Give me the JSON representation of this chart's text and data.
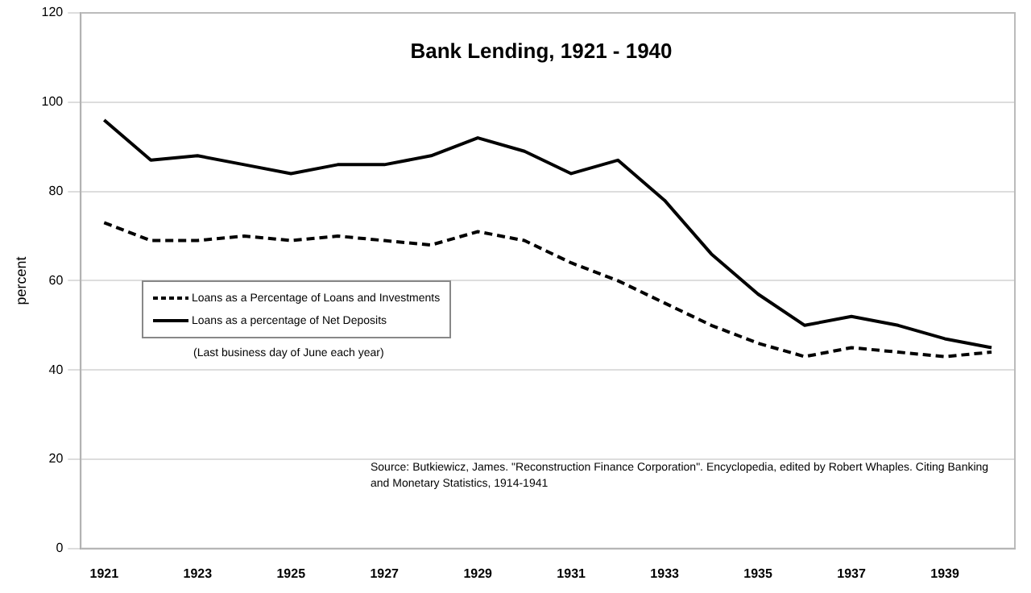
{
  "chart_data": {
    "type": "line",
    "title": "Bank Lending, 1921 - 1940",
    "ylabel": "percent",
    "categories": [
      "1921",
      null,
      "1923",
      null,
      "1925",
      null,
      "1927",
      null,
      "1929",
      null,
      "1931",
      null,
      "1933",
      null,
      "1935",
      null,
      "1937",
      null,
      "1939",
      null
    ],
    "series": [
      {
        "name": "Loans as a Percentage of Loans and Investments",
        "color": "#000000",
        "line_style": "dashed",
        "values": [
          73,
          69,
          69,
          70,
          69,
          70,
          69,
          68,
          71,
          69,
          64,
          60,
          55,
          50,
          46,
          43,
          45,
          44,
          43,
          44
        ]
      },
      {
        "name": "Loans as a percentage of Net Deposits",
        "color": "#000000",
        "line_style": "solid",
        "values": [
          96,
          87,
          88,
          86,
          84,
          86,
          86,
          88,
          92,
          89,
          84,
          87,
          78,
          66,
          57,
          50,
          52,
          50,
          47,
          45
        ]
      }
    ],
    "ylim": [
      0,
      120
    ],
    "yticks": [
      0,
      20,
      40,
      60,
      80,
      100,
      120
    ],
    "grid": "y",
    "legend": "left",
    "marker": "none",
    "annotations": [
      "(Last business day of June each year)",
      "Source: Butkiewicz, James. \"Reconstruction Finance Corporation\". Encyclopedia, edited by Robert Whaples. Citing Banking and Monetary Statistics, 1914-1941"
    ]
  }
}
